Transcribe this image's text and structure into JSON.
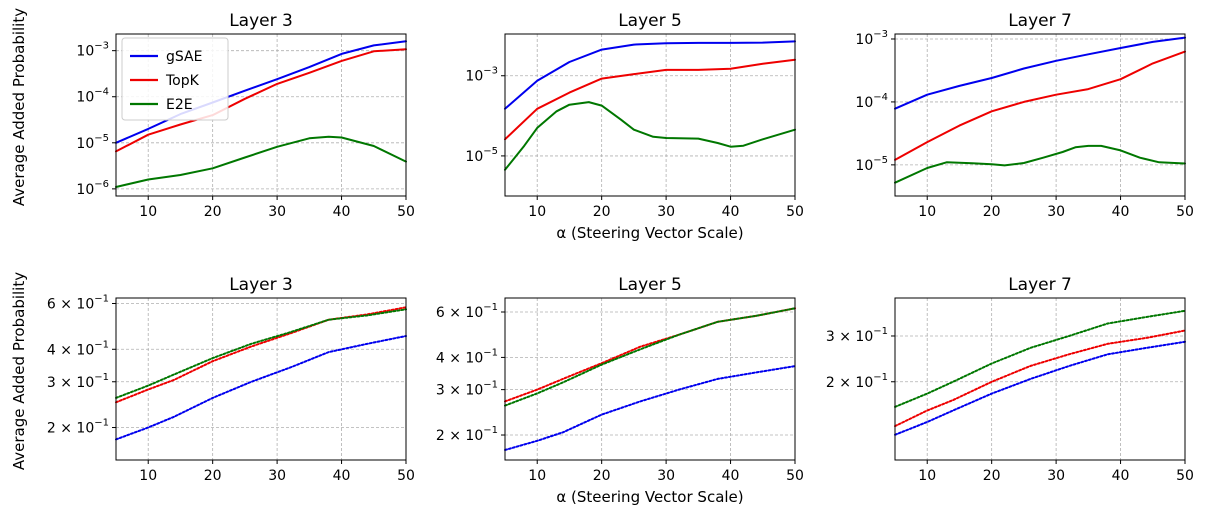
{
  "chart_data": [
    {
      "type": "line",
      "row": 0,
      "title": "Layer 3",
      "xlabel": "",
      "ylabel": "Average Added Probability",
      "xlim": [
        5,
        50
      ],
      "xticks": [
        10,
        20,
        30,
        40,
        50
      ],
      "yscale": "log",
      "ylim": [
        7e-07,
        0.0023
      ],
      "yticks": [
        {
          "v": 1e-06,
          "mant": "10",
          "exp": "−6"
        },
        {
          "v": 1e-05,
          "mant": "10",
          "exp": "−5"
        },
        {
          "v": 0.0001,
          "mant": "10",
          "exp": "−4"
        },
        {
          "v": 0.001,
          "mant": "10",
          "exp": "−3"
        }
      ],
      "grid": true,
      "legend": {
        "position": "top-left",
        "entries": [
          "gSAE",
          "TopK",
          "E2E"
        ]
      },
      "series": [
        {
          "name": "gSAE",
          "color": "#0000ee",
          "style": "solid",
          "x": [
            5,
            10,
            15,
            20,
            25,
            30,
            35,
            40,
            45,
            50
          ],
          "y": [
            1e-05,
            2e-05,
            4.2e-05,
            7.5e-05,
            0.000135,
            0.00024,
            0.00044,
            0.00085,
            0.0013,
            0.0016
          ]
        },
        {
          "name": "TopK",
          "color": "#ee0000",
          "style": "solid",
          "x": [
            5,
            10,
            15,
            20,
            25,
            30,
            35,
            40,
            45,
            50
          ],
          "y": [
            6.5e-06,
            1.5e-05,
            2.5e-05,
            4e-05,
            9e-05,
            0.00019,
            0.00033,
            0.0006,
            0.00097,
            0.00107
          ]
        },
        {
          "name": "E2E",
          "color": "#007700",
          "style": "solid",
          "x": [
            5,
            10,
            15,
            20,
            25,
            30,
            35,
            38,
            40,
            45,
            50
          ],
          "y": [
            1.1e-06,
            1.6e-06,
            2e-06,
            2.8e-06,
            4.8e-06,
            8.2e-06,
            1.25e-05,
            1.35e-05,
            1.3e-05,
            8.5e-06,
            3.9e-06
          ]
        }
      ]
    },
    {
      "type": "line",
      "row": 0,
      "title": "Layer 5",
      "xlabel": "α (Steering Vector Scale)",
      "ylabel": "",
      "xlim": [
        5,
        50
      ],
      "xticks": [
        10,
        20,
        30,
        40,
        50
      ],
      "yscale": "log",
      "ylim": [
        1e-06,
        0.011
      ],
      "yticks": [
        {
          "v": 1e-05,
          "mant": "10",
          "exp": "−5"
        },
        {
          "v": 0.001,
          "mant": "10",
          "exp": "−3"
        }
      ],
      "grid": true,
      "series": [
        {
          "name": "gSAE",
          "color": "#0000ee",
          "style": "solid",
          "x": [
            5,
            10,
            15,
            20,
            25,
            30,
            35,
            40,
            45,
            50
          ],
          "y": [
            0.00015,
            0.00075,
            0.0022,
            0.0045,
            0.006,
            0.0065,
            0.0066,
            0.0066,
            0.0067,
            0.0072
          ]
        },
        {
          "name": "TopK",
          "color": "#ee0000",
          "style": "solid",
          "x": [
            5,
            10,
            15,
            20,
            25,
            30,
            35,
            40,
            45,
            50
          ],
          "y": [
            2.6e-05,
            0.00015,
            0.00038,
            0.00085,
            0.0011,
            0.0014,
            0.0014,
            0.0015,
            0.002,
            0.0025
          ]
        },
        {
          "name": "E2E",
          "color": "#007700",
          "style": "solid",
          "x": [
            5,
            8,
            10,
            13,
            15,
            18,
            20,
            23,
            25,
            28,
            30,
            35,
            38,
            40,
            42,
            45,
            50
          ],
          "y": [
            4.5e-06,
            1.8e-05,
            5e-05,
            0.00013,
            0.00019,
            0.00022,
            0.00018,
            8e-05,
            4.5e-05,
            3e-05,
            2.8e-05,
            2.7e-05,
            2.1e-05,
            1.7e-05,
            1.8e-05,
            2.6e-05,
            4.5e-05
          ]
        }
      ]
    },
    {
      "type": "line",
      "row": 0,
      "title": "Layer 7",
      "xlabel": "",
      "ylabel": "",
      "xlim": [
        5,
        50
      ],
      "xticks": [
        10,
        20,
        30,
        40,
        50
      ],
      "yscale": "log",
      "ylim": [
        3.2e-06,
        0.0012
      ],
      "yticks": [
        {
          "v": 1e-05,
          "mant": "10",
          "exp": "−5"
        },
        {
          "v": 0.0001,
          "mant": "10",
          "exp": "−4"
        },
        {
          "v": 0.001,
          "mant": "10",
          "exp": "−3"
        }
      ],
      "grid": true,
      "series": [
        {
          "name": "gSAE",
          "color": "#0000ee",
          "style": "solid",
          "x": [
            5,
            10,
            15,
            20,
            25,
            30,
            35,
            40,
            45,
            50
          ],
          "y": [
            7.8e-05,
            0.00013,
            0.00018,
            0.00024,
            0.00034,
            0.00045,
            0.00057,
            0.00072,
            0.0009,
            0.00105
          ]
        },
        {
          "name": "TopK",
          "color": "#ee0000",
          "style": "solid",
          "x": [
            5,
            10,
            15,
            20,
            25,
            30,
            35,
            40,
            45,
            50
          ],
          "y": [
            1.2e-05,
            2.3e-05,
            4.2e-05,
            7.1e-05,
            0.0001,
            0.00013,
            0.00016,
            0.00023,
            0.00041,
            0.00063
          ]
        },
        {
          "name": "E2E",
          "color": "#007700",
          "style": "solid",
          "x": [
            5,
            10,
            13,
            17,
            20,
            22,
            25,
            28,
            31,
            33,
            35,
            37,
            40,
            43,
            46,
            50
          ],
          "y": [
            5.2e-06,
            8.9e-06,
            1.1e-05,
            1.06e-05,
            1.02e-05,
            9.8e-06,
            1.07e-05,
            1.3e-05,
            1.6e-05,
            1.9e-05,
            2e-05,
            2e-05,
            1.7e-05,
            1.3e-05,
            1.1e-05,
            1.05e-05
          ]
        }
      ]
    },
    {
      "type": "line",
      "row": 1,
      "title": "Layer 3",
      "xlabel": "",
      "ylabel": "Average Added Probability",
      "xlim": [
        5,
        50
      ],
      "xticks": [
        10,
        20,
        30,
        40,
        50
      ],
      "yscale": "log",
      "ylim": [
        0.15,
        0.63
      ],
      "yticks": [
        {
          "v": 0.2,
          "mant": "2 × 10",
          "exp": "−1"
        },
        {
          "v": 0.3,
          "mant": "3 × 10",
          "exp": "−1"
        },
        {
          "v": 0.4,
          "mant": "4 × 10",
          "exp": "−1"
        },
        {
          "v": 0.6,
          "mant": "6 × 10",
          "exp": "−1"
        }
      ],
      "grid": true,
      "series": [
        {
          "name": "gSAE",
          "color": "#0000ee",
          "style": "dotted",
          "x": [
            5,
            10,
            14,
            20,
            26,
            32,
            38,
            44,
            50
          ],
          "y": [
            0.18,
            0.2,
            0.22,
            0.26,
            0.3,
            0.34,
            0.39,
            0.42,
            0.45
          ]
        },
        {
          "name": "TopK",
          "color": "#ee0000",
          "style": "dotted",
          "x": [
            5,
            10,
            14,
            20,
            26,
            32,
            38,
            44,
            50
          ],
          "y": [
            0.25,
            0.28,
            0.305,
            0.36,
            0.41,
            0.46,
            0.52,
            0.545,
            0.58
          ]
        },
        {
          "name": "E2E",
          "color": "#007700",
          "style": "dotted",
          "x": [
            5,
            10,
            14,
            20,
            26,
            32,
            38,
            44,
            50
          ],
          "y": [
            0.26,
            0.29,
            0.32,
            0.37,
            0.42,
            0.465,
            0.52,
            0.54,
            0.57
          ]
        }
      ]
    },
    {
      "type": "line",
      "row": 1,
      "title": "Layer 5",
      "xlabel": "α (Steering Vector Scale)",
      "ylabel": "",
      "xlim": [
        5,
        50
      ],
      "xticks": [
        10,
        20,
        30,
        40,
        50
      ],
      "yscale": "log",
      "ylim": [
        0.16,
        0.68
      ],
      "yticks": [
        {
          "v": 0.2,
          "mant": "2 × 10",
          "exp": "−1"
        },
        {
          "v": 0.3,
          "mant": "3 × 10",
          "exp": "−1"
        },
        {
          "v": 0.4,
          "mant": "4 × 10",
          "exp": "−1"
        },
        {
          "v": 0.6,
          "mant": "6 × 10",
          "exp": "−1"
        }
      ],
      "grid": true,
      "series": [
        {
          "name": "gSAE",
          "color": "#0000ee",
          "style": "dotted",
          "x": [
            5,
            10,
            14,
            20,
            26,
            32,
            38,
            44,
            50
          ],
          "y": [
            0.175,
            0.19,
            0.205,
            0.24,
            0.27,
            0.3,
            0.33,
            0.35,
            0.37
          ]
        },
        {
          "name": "TopK",
          "color": "#ee0000",
          "style": "dotted",
          "x": [
            5,
            10,
            14,
            20,
            26,
            32,
            38,
            44,
            50
          ],
          "y": [
            0.27,
            0.3,
            0.33,
            0.38,
            0.44,
            0.49,
            0.55,
            0.58,
            0.62
          ]
        },
        {
          "name": "E2E",
          "color": "#007700",
          "style": "dotted",
          "x": [
            5,
            10,
            14,
            20,
            26,
            32,
            38,
            44,
            50
          ],
          "y": [
            0.26,
            0.29,
            0.32,
            0.375,
            0.43,
            0.49,
            0.55,
            0.58,
            0.62
          ]
        }
      ]
    },
    {
      "type": "line",
      "row": 1,
      "title": "Layer 7",
      "xlabel": "",
      "ylabel": "",
      "xlim": [
        5,
        50
      ],
      "xticks": [
        10,
        20,
        30,
        40,
        50
      ],
      "yscale": "log",
      "ylim": [
        0.1,
        0.42
      ],
      "yticks": [
        {
          "v": 0.2,
          "mant": "2 × 10",
          "exp": "−1"
        },
        {
          "v": 0.3,
          "mant": "3 × 10",
          "exp": "−1"
        }
      ],
      "grid": true,
      "series": [
        {
          "name": "gSAE",
          "color": "#0000ee",
          "style": "dotted",
          "x": [
            5,
            10,
            14,
            20,
            26,
            32,
            38,
            44,
            50
          ],
          "y": [
            0.125,
            0.14,
            0.155,
            0.18,
            0.205,
            0.23,
            0.255,
            0.27,
            0.285
          ]
        },
        {
          "name": "TopK",
          "color": "#ee0000",
          "style": "dotted",
          "x": [
            5,
            10,
            14,
            20,
            26,
            32,
            38,
            44,
            50
          ],
          "y": [
            0.135,
            0.155,
            0.17,
            0.2,
            0.23,
            0.255,
            0.28,
            0.295,
            0.315
          ]
        },
        {
          "name": "E2E",
          "color": "#007700",
          "style": "dotted",
          "x": [
            5,
            10,
            14,
            20,
            26,
            32,
            38,
            44,
            50
          ],
          "y": [
            0.16,
            0.18,
            0.2,
            0.235,
            0.27,
            0.3,
            0.335,
            0.355,
            0.375
          ]
        }
      ]
    }
  ]
}
